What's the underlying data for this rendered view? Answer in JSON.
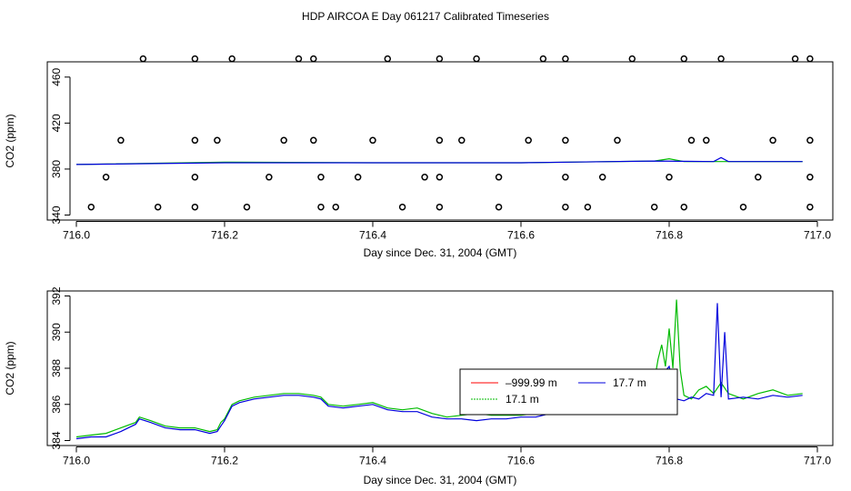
{
  "page_title": "HDP AIRCOA E  Day 061217  Calibrated Timeseries",
  "chart_data": [
    {
      "type": "scatter",
      "title": "",
      "xlabel": "Day since Dec. 31, 2004 (GMT)",
      "ylabel": "CO2 (ppm)",
      "xlim": [
        716.0,
        717.0
      ],
      "ylim": [
        340,
        480
      ],
      "xticks": [
        716.0,
        716.2,
        716.4,
        716.6,
        716.8,
        717.0
      ],
      "yticks": [
        340,
        380,
        420,
        460
      ],
      "grid": false,
      "series": [
        {
          "kind": "points",
          "color": "#000000",
          "points": [
            [
              716.09,
              476
            ],
            [
              716.16,
              476
            ],
            [
              716.21,
              476
            ],
            [
              716.3,
              476
            ],
            [
              716.32,
              476
            ],
            [
              716.42,
              476
            ],
            [
              716.49,
              476
            ],
            [
              716.54,
              476
            ],
            [
              716.63,
              476
            ],
            [
              716.66,
              476
            ],
            [
              716.75,
              476
            ],
            [
              716.82,
              476
            ],
            [
              716.87,
              476
            ],
            [
              716.97,
              476
            ],
            [
              716.99,
              476
            ],
            [
              716.06,
              405
            ],
            [
              716.16,
              405
            ],
            [
              716.19,
              405
            ],
            [
              716.28,
              405
            ],
            [
              716.32,
              405
            ],
            [
              716.4,
              405
            ],
            [
              716.49,
              405
            ],
            [
              716.52,
              405
            ],
            [
              716.61,
              405
            ],
            [
              716.66,
              405
            ],
            [
              716.73,
              405
            ],
            [
              716.83,
              405
            ],
            [
              716.85,
              405
            ],
            [
              716.94,
              405
            ],
            [
              716.99,
              405
            ],
            [
              716.04,
              373
            ],
            [
              716.16,
              373
            ],
            [
              716.26,
              373
            ],
            [
              716.33,
              373
            ],
            [
              716.38,
              373
            ],
            [
              716.47,
              373
            ],
            [
              716.49,
              373
            ],
            [
              716.57,
              373
            ],
            [
              716.66,
              373
            ],
            [
              716.71,
              373
            ],
            [
              716.8,
              373
            ],
            [
              716.92,
              373
            ],
            [
              716.99,
              373
            ],
            [
              716.02,
              347
            ],
            [
              716.11,
              347
            ],
            [
              716.16,
              347
            ],
            [
              716.23,
              347
            ],
            [
              716.33,
              347
            ],
            [
              716.35,
              347
            ],
            [
              716.44,
              347
            ],
            [
              716.49,
              347
            ],
            [
              716.57,
              347
            ],
            [
              716.66,
              347
            ],
            [
              716.69,
              347
            ],
            [
              716.78,
              347
            ],
            [
              716.82,
              347
            ],
            [
              716.9,
              347
            ],
            [
              716.99,
              347
            ]
          ]
        },
        {
          "name": "17.1 m",
          "kind": "line",
          "color": "#00bb00",
          "x": [
            716.0,
            716.2,
            716.4,
            716.6,
            716.78,
            716.8,
            716.82,
            716.86,
            716.98
          ],
          "y": [
            384,
            386,
            385.5,
            385.5,
            387,
            389,
            386.5,
            386.5,
            386.5
          ]
        },
        {
          "name": "17.7 m",
          "kind": "line",
          "color": "#0000dd",
          "x": [
            716.0,
            716.2,
            716.4,
            716.6,
            716.78,
            716.86,
            716.87,
            716.88,
            716.98
          ],
          "y": [
            384,
            385.5,
            385.5,
            385.5,
            387,
            386.5,
            390,
            386.5,
            386.5
          ]
        }
      ]
    },
    {
      "type": "line",
      "title": "",
      "xlabel": "Day since Dec. 31, 2004 (GMT)",
      "ylabel": "CO2 (ppm)",
      "xlim": [
        716.0,
        717.0
      ],
      "ylim": [
        384,
        392
      ],
      "xticks": [
        716.0,
        716.2,
        716.4,
        716.6,
        716.8,
        717.0
      ],
      "yticks": [
        384,
        386,
        388,
        390,
        392
      ],
      "grid": false,
      "legend": {
        "placement": "center-right",
        "entries": [
          {
            "label": "–999.99 m",
            "color": "#ff0000"
          },
          {
            "label": "17.7 m",
            "color": "#0000dd"
          },
          {
            "label": "17.1 m",
            "color": "#00bb00"
          }
        ]
      },
      "series": [
        {
          "name": "17.1 m",
          "color": "#00bb00",
          "x": [
            716.0,
            716.02,
            716.04,
            716.06,
            716.08,
            716.085,
            716.1,
            716.12,
            716.14,
            716.16,
            716.18,
            716.19,
            716.195,
            716.2,
            716.21,
            716.22,
            716.24,
            716.26,
            716.28,
            716.3,
            716.32,
            716.33,
            716.34,
            716.36,
            716.38,
            716.4,
            716.42,
            716.44,
            716.46,
            716.48,
            716.5,
            716.52,
            716.54,
            716.56,
            716.58,
            716.6,
            716.62,
            716.64,
            716.66,
            716.68,
            716.7,
            716.72,
            716.74,
            716.76,
            716.78,
            716.785,
            716.79,
            716.795,
            716.8,
            716.805,
            716.81,
            716.815,
            716.82,
            716.83,
            716.84,
            716.85,
            716.86,
            716.87,
            716.88,
            716.9,
            716.92,
            716.94,
            716.96,
            716.98
          ],
          "y": [
            384.2,
            384.3,
            384.4,
            384.7,
            385.0,
            385.3,
            385.1,
            384.8,
            384.7,
            384.7,
            384.5,
            384.6,
            385.0,
            385.2,
            386.0,
            386.2,
            386.4,
            386.5,
            386.6,
            386.6,
            386.5,
            386.4,
            386.0,
            385.9,
            386.0,
            386.1,
            385.8,
            385.7,
            385.8,
            385.5,
            385.3,
            385.4,
            385.5,
            385.4,
            385.4,
            385.4,
            385.5,
            385.6,
            385.8,
            385.9,
            386.1,
            386.3,
            386.5,
            386.8,
            387.3,
            388.5,
            389.3,
            388.1,
            390.2,
            388.0,
            391.8,
            387.9,
            386.5,
            386.3,
            386.8,
            387.0,
            386.6,
            387.2,
            386.6,
            386.3,
            386.6,
            386.8,
            386.5,
            386.6
          ]
        },
        {
          "name": "17.7 m",
          "color": "#0000dd",
          "x": [
            716.0,
            716.02,
            716.04,
            716.06,
            716.08,
            716.085,
            716.1,
            716.12,
            716.14,
            716.16,
            716.18,
            716.19,
            716.195,
            716.2,
            716.21,
            716.22,
            716.24,
            716.26,
            716.28,
            716.3,
            716.32,
            716.33,
            716.34,
            716.36,
            716.38,
            716.4,
            716.42,
            716.44,
            716.46,
            716.48,
            716.5,
            716.52,
            716.54,
            716.56,
            716.58,
            716.6,
            716.62,
            716.64,
            716.66,
            716.68,
            716.7,
            716.72,
            716.74,
            716.76,
            716.78,
            716.79,
            716.8,
            716.805,
            716.81,
            716.82,
            716.83,
            716.84,
            716.85,
            716.86,
            716.865,
            716.87,
            716.875,
            716.88,
            716.9,
            716.92,
            716.94,
            716.96,
            716.98
          ],
          "y": [
            384.1,
            384.2,
            384.2,
            384.5,
            384.9,
            385.2,
            385.0,
            384.7,
            384.6,
            384.6,
            384.4,
            384.5,
            384.8,
            385.1,
            385.9,
            386.1,
            386.3,
            386.4,
            386.5,
            386.5,
            386.4,
            386.3,
            385.9,
            385.8,
            385.9,
            386.0,
            385.7,
            385.6,
            385.6,
            385.3,
            385.2,
            385.2,
            385.1,
            385.2,
            385.2,
            385.3,
            385.3,
            385.5,
            385.6,
            385.8,
            386.0,
            386.2,
            386.4,
            386.6,
            387.0,
            387.6,
            388.1,
            387.2,
            386.3,
            386.2,
            386.4,
            386.3,
            386.6,
            386.5,
            391.6,
            386.4,
            390.0,
            386.3,
            386.4,
            386.3,
            386.5,
            386.4,
            386.5
          ]
        }
      ]
    }
  ]
}
